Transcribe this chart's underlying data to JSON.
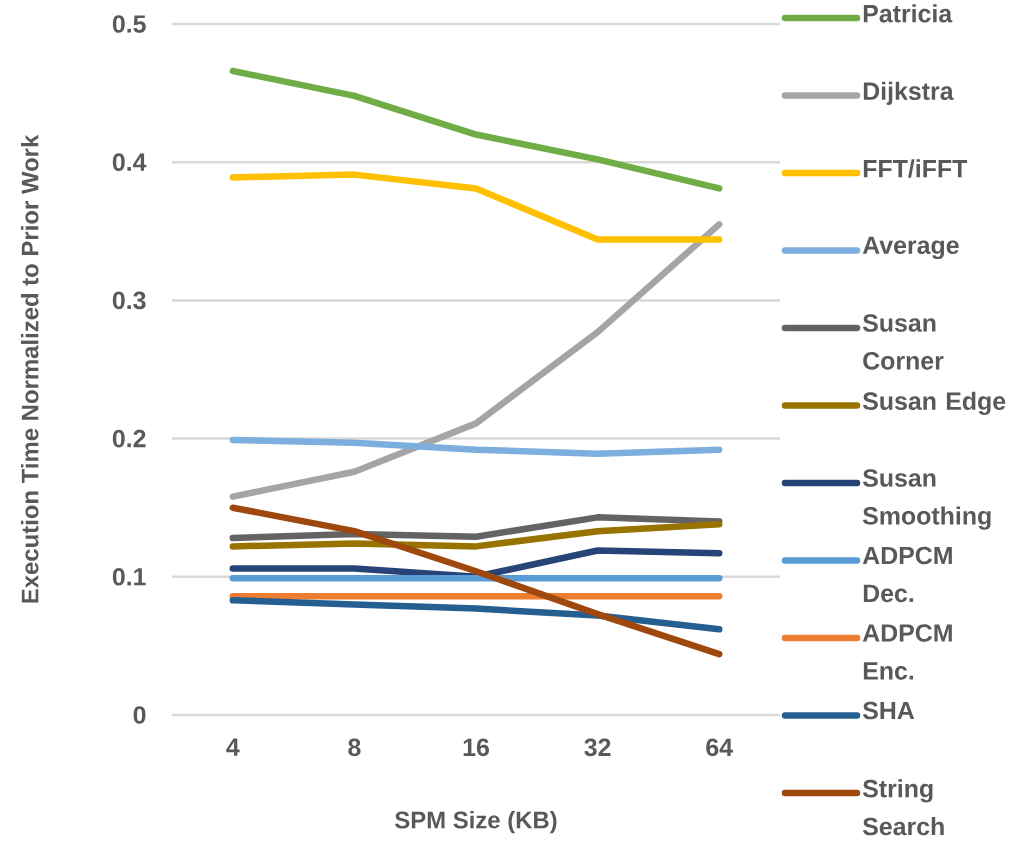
{
  "chart_data": {
    "type": "line",
    "xlabel": "SPM Size (KB)",
    "ylabel": "Execution Time Normalized to Prior Work",
    "categories": [
      "4",
      "8",
      "16",
      "32",
      "64"
    ],
    "ylim": [
      0,
      0.5
    ],
    "yticks": [
      0,
      0.1,
      0.2,
      0.3,
      0.4,
      0.5
    ],
    "grid": "y",
    "legend": "right",
    "marker": "none",
    "line_style": "solid",
    "series": [
      {
        "name": "Patricia",
        "color": "#70ad47",
        "values": [
          0.466,
          0.448,
          0.42,
          0.402,
          0.381
        ]
      },
      {
        "name": "Dijkstra",
        "color": "#a5a5a5",
        "values": [
          0.158,
          0.176,
          0.211,
          0.277,
          0.355
        ]
      },
      {
        "name": "FFT/iFFT",
        "color": "#ffc000",
        "values": [
          0.389,
          0.391,
          0.381,
          0.344,
          0.344
        ]
      },
      {
        "name": "Average",
        "color": "#7cafdd",
        "values": [
          0.199,
          0.197,
          0.192,
          0.189,
          0.192
        ]
      },
      {
        "name": "Susan Corner",
        "color": "#636363",
        "values": [
          0.128,
          0.131,
          0.129,
          0.143,
          0.14
        ]
      },
      {
        "name": "Susan Edge",
        "color": "#997300",
        "values": [
          0.122,
          0.124,
          0.122,
          0.133,
          0.138
        ]
      },
      {
        "name": "Susan Smoothing",
        "color": "#264478",
        "values": [
          0.106,
          0.106,
          0.1,
          0.119,
          0.117
        ]
      },
      {
        "name": "ADPCM Dec.",
        "color": "#5b9bd5",
        "values": [
          0.099,
          0.099,
          0.099,
          0.099,
          0.099
        ]
      },
      {
        "name": "ADPCM Enc.",
        "color": "#ed7d31",
        "values": [
          0.086,
          0.086,
          0.086,
          0.086,
          0.086
        ]
      },
      {
        "name": "SHA",
        "color": "#255e91",
        "values": [
          0.083,
          0.08,
          0.077,
          0.072,
          0.062
        ]
      },
      {
        "name": "String Search",
        "color": "#9e480e",
        "values": [
          0.15,
          0.133,
          0.104,
          0.073,
          0.044
        ]
      }
    ]
  }
}
